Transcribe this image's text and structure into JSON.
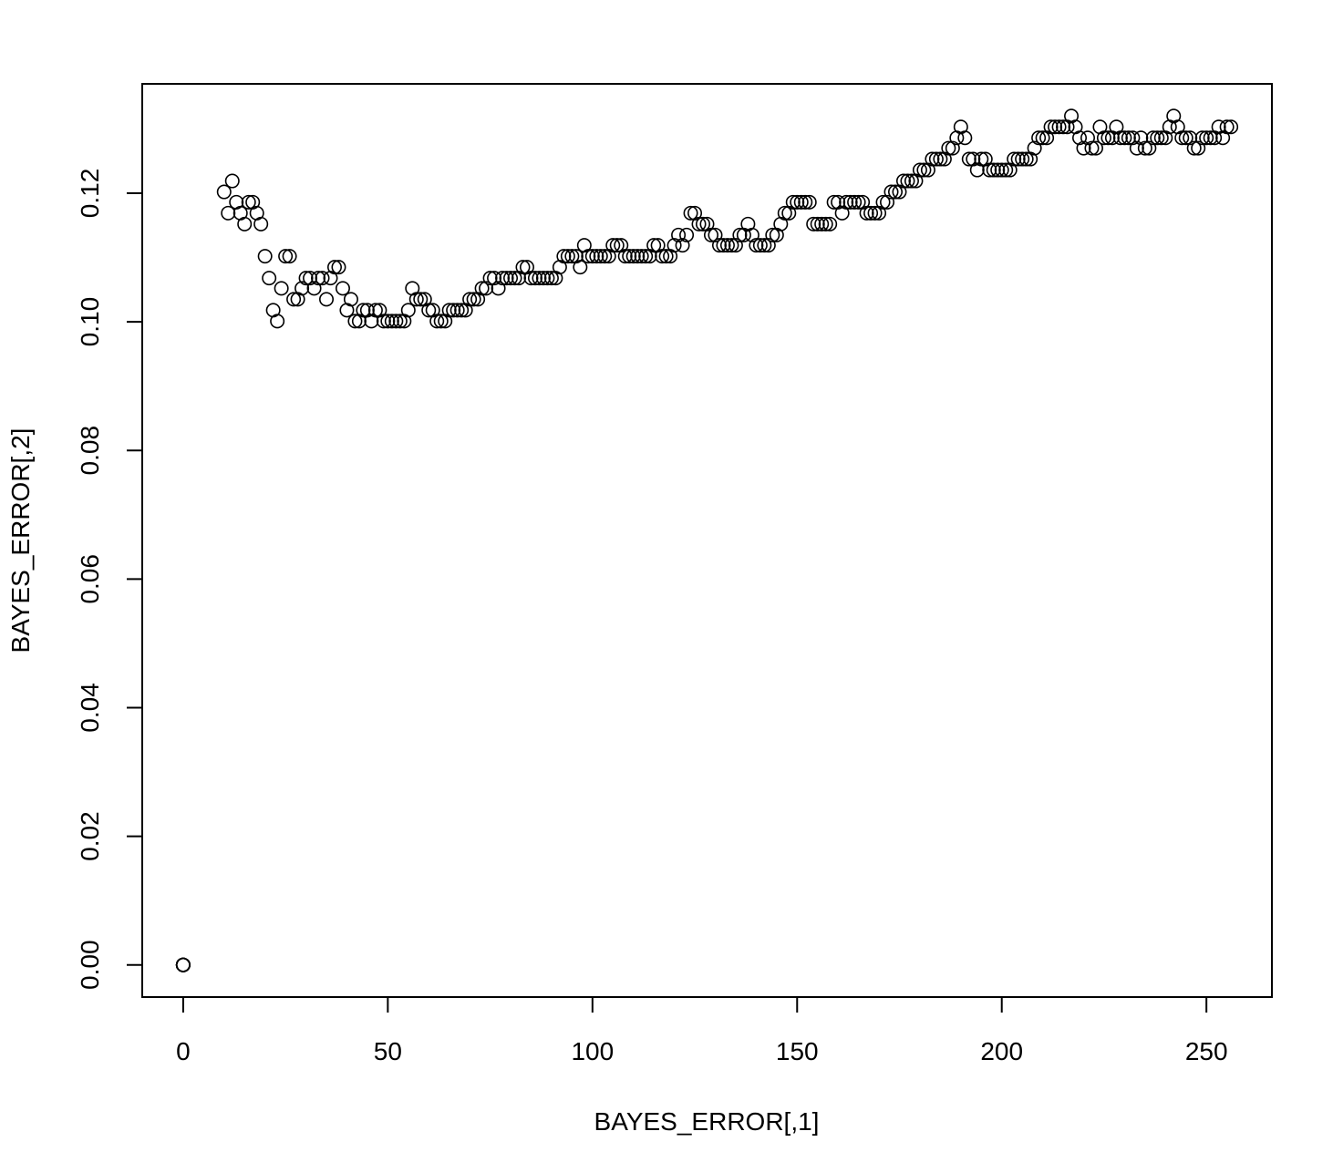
{
  "chart_data": {
    "type": "scatter",
    "title": "",
    "xlabel": "BAYES_ERROR[,1]",
    "ylabel": "BAYES_ERROR[,2]",
    "xlim": [
      -10,
      266
    ],
    "ylim": [
      -0.005,
      0.137
    ],
    "x_ticks": [
      0,
      50,
      100,
      150,
      200,
      250
    ],
    "y_ticks": [
      0.0,
      0.02,
      0.04,
      0.06,
      0.08,
      0.1,
      0.12
    ],
    "x_tick_labels": [
      "0",
      "50",
      "100",
      "150",
      "200",
      "250"
    ],
    "y_tick_labels": [
      "0.00",
      "0.02",
      "0.04",
      "0.06",
      "0.08",
      "0.10",
      "0.12"
    ],
    "grid": false,
    "legend": "none",
    "marker": "open-circle",
    "colors": {
      "marker_stroke": "#000000",
      "axis": "#000000",
      "background": "#ffffff"
    },
    "points": [
      [
        0,
        0
      ],
      [
        0,
        0
      ],
      [
        0,
        0
      ],
      [
        0,
        0
      ],
      [
        0,
        0
      ],
      [
        0,
        0
      ],
      [
        0,
        0
      ],
      [
        0,
        0
      ],
      [
        0,
        0
      ],
      [
        0,
        0
      ],
      [
        10,
        0.1202
      ],
      [
        11,
        0.1169
      ],
      [
        12,
        0.1219
      ],
      [
        13,
        0.1186
      ],
      [
        14,
        0.1169
      ],
      [
        15,
        0.1152
      ],
      [
        16,
        0.1186
      ],
      [
        17,
        0.1186
      ],
      [
        18,
        0.1169
      ],
      [
        19,
        0.1152
      ],
      [
        20,
        0.1102
      ],
      [
        21,
        0.1068
      ],
      [
        22,
        0.1018
      ],
      [
        23,
        0.1001
      ],
      [
        24,
        0.1052
      ],
      [
        25,
        0.1102
      ],
      [
        26,
        0.1102
      ],
      [
        27,
        0.1035
      ],
      [
        28,
        0.1035
      ],
      [
        29,
        0.1052
      ],
      [
        30,
        0.1068
      ],
      [
        31,
        0.1068
      ],
      [
        32,
        0.1052
      ],
      [
        33,
        0.1068
      ],
      [
        34,
        0.1068
      ],
      [
        35,
        0.1035
      ],
      [
        36,
        0.1068
      ],
      [
        37,
        0.1085
      ],
      [
        38,
        0.1085
      ],
      [
        39,
        0.1052
      ],
      [
        40,
        0.1018
      ],
      [
        41,
        0.1035
      ],
      [
        42,
        0.1001
      ],
      [
        43,
        0.1001
      ],
      [
        44,
        0.1018
      ],
      [
        45,
        0.1018
      ],
      [
        46,
        0.1001
      ],
      [
        47,
        0.1018
      ],
      [
        48,
        0.1018
      ],
      [
        49,
        0.1001
      ],
      [
        50,
        0.1001
      ],
      [
        51,
        0.1001
      ],
      [
        52,
        0.1001
      ],
      [
        53,
        0.1001
      ],
      [
        54,
        0.1001
      ],
      [
        55,
        0.1018
      ],
      [
        56,
        0.1052
      ],
      [
        57,
        0.1035
      ],
      [
        58,
        0.1035
      ],
      [
        59,
        0.1035
      ],
      [
        60,
        0.1018
      ],
      [
        61,
        0.1018
      ],
      [
        62,
        0.1001
      ],
      [
        63,
        0.1001
      ],
      [
        64,
        0.1001
      ],
      [
        65,
        0.1018
      ],
      [
        66,
        0.1018
      ],
      [
        67,
        0.1018
      ],
      [
        68,
        0.1018
      ],
      [
        69,
        0.1018
      ],
      [
        70,
        0.1035
      ],
      [
        71,
        0.1035
      ],
      [
        72,
        0.1035
      ],
      [
        73,
        0.1052
      ],
      [
        74,
        0.1052
      ],
      [
        75,
        0.1068
      ],
      [
        76,
        0.1068
      ],
      [
        77,
        0.1052
      ],
      [
        78,
        0.1068
      ],
      [
        79,
        0.1068
      ],
      [
        80,
        0.1068
      ],
      [
        81,
        0.1068
      ],
      [
        82,
        0.1068
      ],
      [
        83,
        0.1085
      ],
      [
        84,
        0.1085
      ],
      [
        85,
        0.1068
      ],
      [
        86,
        0.1068
      ],
      [
        87,
        0.1068
      ],
      [
        88,
        0.1068
      ],
      [
        89,
        0.1068
      ],
      [
        90,
        0.1068
      ],
      [
        91,
        0.1068
      ],
      [
        92,
        0.1085
      ],
      [
        93,
        0.1102
      ],
      [
        94,
        0.1102
      ],
      [
        95,
        0.1102
      ],
      [
        96,
        0.1102
      ],
      [
        97,
        0.1085
      ],
      [
        98,
        0.1119
      ],
      [
        99,
        0.1102
      ],
      [
        100,
        0.1102
      ],
      [
        101,
        0.1102
      ],
      [
        102,
        0.1102
      ],
      [
        103,
        0.1102
      ],
      [
        104,
        0.1102
      ],
      [
        105,
        0.1119
      ],
      [
        106,
        0.1119
      ],
      [
        107,
        0.1119
      ],
      [
        108,
        0.1102
      ],
      [
        109,
        0.1102
      ],
      [
        110,
        0.1102
      ],
      [
        111,
        0.1102
      ],
      [
        112,
        0.1102
      ],
      [
        113,
        0.1102
      ],
      [
        114,
        0.1102
      ],
      [
        115,
        0.1119
      ],
      [
        116,
        0.1119
      ],
      [
        117,
        0.1102
      ],
      [
        118,
        0.1102
      ],
      [
        119,
        0.1102
      ],
      [
        120,
        0.1119
      ],
      [
        121,
        0.1135
      ],
      [
        122,
        0.1119
      ],
      [
        123,
        0.1135
      ],
      [
        124,
        0.1169
      ],
      [
        125,
        0.1169
      ],
      [
        126,
        0.1152
      ],
      [
        127,
        0.1152
      ],
      [
        128,
        0.1152
      ],
      [
        129,
        0.1135
      ],
      [
        130,
        0.1135
      ],
      [
        131,
        0.1119
      ],
      [
        132,
        0.1119
      ],
      [
        133,
        0.1119
      ],
      [
        134,
        0.1119
      ],
      [
        135,
        0.1119
      ],
      [
        136,
        0.1135
      ],
      [
        137,
        0.1135
      ],
      [
        138,
        0.1152
      ],
      [
        139,
        0.1135
      ],
      [
        140,
        0.1119
      ],
      [
        141,
        0.1119
      ],
      [
        142,
        0.1119
      ],
      [
        143,
        0.1119
      ],
      [
        144,
        0.1135
      ],
      [
        145,
        0.1135
      ],
      [
        146,
        0.1152
      ],
      [
        147,
        0.1169
      ],
      [
        148,
        0.1169
      ],
      [
        149,
        0.1186
      ],
      [
        150,
        0.1186
      ],
      [
        151,
        0.1186
      ],
      [
        152,
        0.1186
      ],
      [
        153,
        0.1186
      ],
      [
        154,
        0.1152
      ],
      [
        155,
        0.1152
      ],
      [
        156,
        0.1152
      ],
      [
        157,
        0.1152
      ],
      [
        158,
        0.1152
      ],
      [
        159,
        0.1186
      ],
      [
        160,
        0.1186
      ],
      [
        161,
        0.1169
      ],
      [
        162,
        0.1186
      ],
      [
        163,
        0.1186
      ],
      [
        164,
        0.1186
      ],
      [
        165,
        0.1186
      ],
      [
        166,
        0.1186
      ],
      [
        167,
        0.1169
      ],
      [
        168,
        0.1169
      ],
      [
        169,
        0.1169
      ],
      [
        170,
        0.1169
      ],
      [
        171,
        0.1186
      ],
      [
        172,
        0.1186
      ],
      [
        173,
        0.1202
      ],
      [
        174,
        0.1202
      ],
      [
        175,
        0.1202
      ],
      [
        176,
        0.1219
      ],
      [
        177,
        0.1219
      ],
      [
        178,
        0.1219
      ],
      [
        179,
        0.1219
      ],
      [
        180,
        0.1236
      ],
      [
        181,
        0.1236
      ],
      [
        182,
        0.1236
      ],
      [
        183,
        0.1253
      ],
      [
        184,
        0.1253
      ],
      [
        185,
        0.1253
      ],
      [
        186,
        0.1253
      ],
      [
        187,
        0.127
      ],
      [
        188,
        0.127
      ],
      [
        189,
        0.1286
      ],
      [
        190,
        0.1303
      ],
      [
        191,
        0.1286
      ],
      [
        192,
        0.1253
      ],
      [
        193,
        0.1253
      ],
      [
        194,
        0.1236
      ],
      [
        195,
        0.1253
      ],
      [
        196,
        0.1253
      ],
      [
        197,
        0.1236
      ],
      [
        198,
        0.1236
      ],
      [
        199,
        0.1236
      ],
      [
        200,
        0.1236
      ],
      [
        201,
        0.1236
      ],
      [
        202,
        0.1236
      ],
      [
        203,
        0.1253
      ],
      [
        204,
        0.1253
      ],
      [
        205,
        0.1253
      ],
      [
        206,
        0.1253
      ],
      [
        207,
        0.1253
      ],
      [
        208,
        0.127
      ],
      [
        209,
        0.1286
      ],
      [
        210,
        0.1286
      ],
      [
        211,
        0.1286
      ],
      [
        212,
        0.1303
      ],
      [
        213,
        0.1303
      ],
      [
        214,
        0.1303
      ],
      [
        215,
        0.1303
      ],
      [
        216,
        0.1303
      ],
      [
        217,
        0.132
      ],
      [
        218,
        0.1303
      ],
      [
        219,
        0.1286
      ],
      [
        220,
        0.127
      ],
      [
        221,
        0.1286
      ],
      [
        222,
        0.127
      ],
      [
        223,
        0.127
      ],
      [
        224,
        0.1303
      ],
      [
        225,
        0.1286
      ],
      [
        226,
        0.1286
      ],
      [
        227,
        0.1286
      ],
      [
        228,
        0.1303
      ],
      [
        229,
        0.1286
      ],
      [
        230,
        0.1286
      ],
      [
        231,
        0.1286
      ],
      [
        232,
        0.1286
      ],
      [
        233,
        0.127
      ],
      [
        234,
        0.1286
      ],
      [
        235,
        0.127
      ],
      [
        236,
        0.127
      ],
      [
        237,
        0.1286
      ],
      [
        238,
        0.1286
      ],
      [
        239,
        0.1286
      ],
      [
        240,
        0.1286
      ],
      [
        241,
        0.1303
      ],
      [
        242,
        0.132
      ],
      [
        243,
        0.1303
      ],
      [
        244,
        0.1286
      ],
      [
        245,
        0.1286
      ],
      [
        246,
        0.1286
      ],
      [
        247,
        0.127
      ],
      [
        248,
        0.127
      ],
      [
        249,
        0.1286
      ],
      [
        250,
        0.1286
      ],
      [
        251,
        0.1286
      ],
      [
        252,
        0.1286
      ],
      [
        253,
        0.1303
      ],
      [
        254,
        0.1286
      ],
      [
        255,
        0.1303
      ],
      [
        256,
        0.1303
      ]
    ]
  }
}
